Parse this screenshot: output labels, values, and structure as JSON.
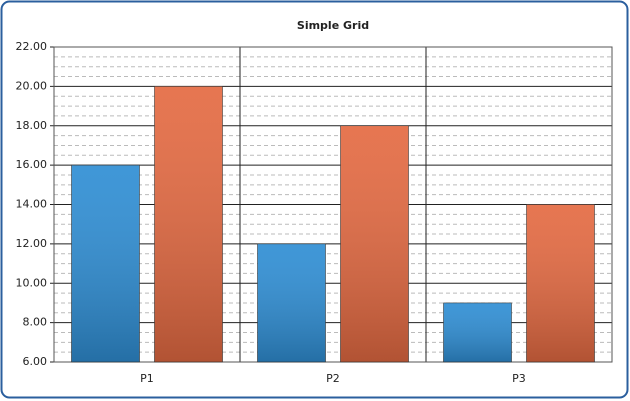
{
  "chart_data": {
    "type": "bar",
    "title": "Simple Grid",
    "categories": [
      "P1",
      "P2",
      "P3"
    ],
    "series": [
      {
        "color": "#2f8ed4",
        "values": [
          16,
          12,
          9
        ]
      },
      {
        "color": "#e46a42",
        "values": [
          20,
          18,
          14
        ]
      }
    ],
    "ylim": [
      6,
      22
    ],
    "yticks": [
      {
        "value": 6,
        "label": "6.00"
      },
      {
        "value": 8,
        "label": "8.00"
      },
      {
        "value": 10,
        "label": "10.00"
      },
      {
        "value": 12,
        "label": "12.00"
      },
      {
        "value": 14,
        "label": "14.00"
      },
      {
        "value": 16,
        "label": "16.00"
      },
      {
        "value": 18,
        "label": "18.00"
      },
      {
        "value": 20,
        "label": "20.00"
      },
      {
        "value": 22,
        "label": "22.00"
      }
    ],
    "grid": true,
    "minor_grid_divisions": 4
  }
}
